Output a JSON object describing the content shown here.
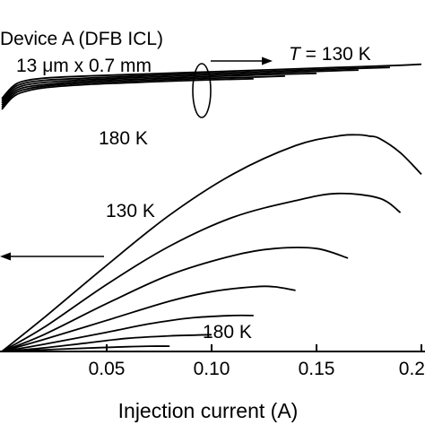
{
  "chart_data": {
    "type": "line",
    "title": "",
    "xlabel": "Injection current (A)",
    "ylabel": "",
    "xlim": [
      0.0,
      0.2
    ],
    "x_ticks": [
      {
        "value": 0.05,
        "label": "0.05"
      },
      {
        "value": 0.1,
        "label": "0.10"
      },
      {
        "value": 0.15,
        "label": "0.15"
      },
      {
        "value": 0.2,
        "label": "0.2"
      }
    ],
    "grid": false,
    "legend": "none",
    "annotations": {
      "device_line1": "Device A (DFB ICL)",
      "device_line2": "13 μm x 0.7 mm",
      "temp_top_italic": "T",
      "temp_top_rest": " = 130 K",
      "voltage_180": "180 K",
      "power_130": "130 K",
      "power_180": "180 K"
    },
    "voltage_group": {
      "ylim": [
        0,
        1
      ],
      "series": [
        {
          "x": [
            0.0,
            0.005,
            0.01,
            0.02,
            0.04,
            0.07,
            0.1,
            0.13,
            0.16,
            0.19,
            0.2
          ],
          "y": [
            0.6,
            0.71,
            0.76,
            0.79,
            0.81,
            0.83,
            0.85,
            0.87,
            0.89,
            0.91,
            0.92
          ]
        },
        {
          "x": [
            0.0,
            0.005,
            0.01,
            0.02,
            0.04,
            0.07,
            0.1,
            0.13,
            0.16,
            0.185
          ],
          "y": [
            0.58,
            0.69,
            0.74,
            0.77,
            0.79,
            0.815,
            0.835,
            0.855,
            0.875,
            0.89
          ]
        },
        {
          "x": [
            0.0,
            0.005,
            0.01,
            0.02,
            0.04,
            0.07,
            0.1,
            0.13,
            0.16,
            0.17
          ],
          "y": [
            0.56,
            0.67,
            0.72,
            0.75,
            0.775,
            0.8,
            0.82,
            0.84,
            0.86,
            0.865
          ]
        },
        {
          "x": [
            0.0,
            0.005,
            0.01,
            0.02,
            0.04,
            0.07,
            0.1,
            0.13,
            0.15
          ],
          "y": [
            0.54,
            0.65,
            0.7,
            0.73,
            0.76,
            0.785,
            0.805,
            0.825,
            0.835
          ]
        },
        {
          "x": [
            0.0,
            0.005,
            0.01,
            0.02,
            0.04,
            0.07,
            0.1,
            0.12,
            0.135
          ],
          "y": [
            0.52,
            0.63,
            0.68,
            0.715,
            0.745,
            0.77,
            0.79,
            0.8,
            0.81
          ]
        },
        {
          "x": [
            0.0,
            0.005,
            0.01,
            0.02,
            0.04,
            0.07,
            0.1,
            0.12
          ],
          "y": [
            0.5,
            0.61,
            0.66,
            0.7,
            0.73,
            0.755,
            0.775,
            0.785
          ]
        }
      ]
    },
    "power_group": {
      "ylim": [
        0,
        1
      ],
      "series": [
        {
          "x": [
            0.0,
            0.02,
            0.05,
            0.08,
            0.11,
            0.14,
            0.16,
            0.17,
            0.175,
            0.18,
            0.19,
            0.2
          ],
          "y": [
            0.0,
            0.14,
            0.36,
            0.57,
            0.74,
            0.86,
            0.9,
            0.905,
            0.9,
            0.89,
            0.83,
            0.74
          ]
        },
        {
          "x": [
            0.0,
            0.02,
            0.05,
            0.08,
            0.11,
            0.14,
            0.16,
            0.18,
            0.19
          ],
          "y": [
            0.0,
            0.1,
            0.28,
            0.44,
            0.56,
            0.63,
            0.66,
            0.64,
            0.58
          ]
        },
        {
          "x": [
            0.0,
            0.02,
            0.05,
            0.08,
            0.11,
            0.13,
            0.15,
            0.165
          ],
          "y": [
            0.0,
            0.07,
            0.2,
            0.32,
            0.4,
            0.43,
            0.43,
            0.39
          ]
        },
        {
          "x": [
            0.0,
            0.02,
            0.05,
            0.08,
            0.1,
            0.12,
            0.13,
            0.14
          ],
          "y": [
            0.0,
            0.05,
            0.13,
            0.21,
            0.25,
            0.27,
            0.27,
            0.255
          ]
        },
        {
          "x": [
            0.0,
            0.02,
            0.05,
            0.07,
            0.09,
            0.11,
            0.12
          ],
          "y": [
            0.0,
            0.03,
            0.08,
            0.115,
            0.14,
            0.15,
            0.15
          ]
        },
        {
          "x": [
            0.0,
            0.02,
            0.04,
            0.06,
            0.08,
            0.1
          ],
          "y": [
            0.0,
            0.015,
            0.035,
            0.055,
            0.065,
            0.07
          ]
        },
        {
          "x": [
            0.0,
            0.02,
            0.04,
            0.06,
            0.07,
            0.08
          ],
          "y": [
            0.0,
            0.007,
            0.014,
            0.02,
            0.022,
            0.022
          ]
        }
      ]
    }
  }
}
